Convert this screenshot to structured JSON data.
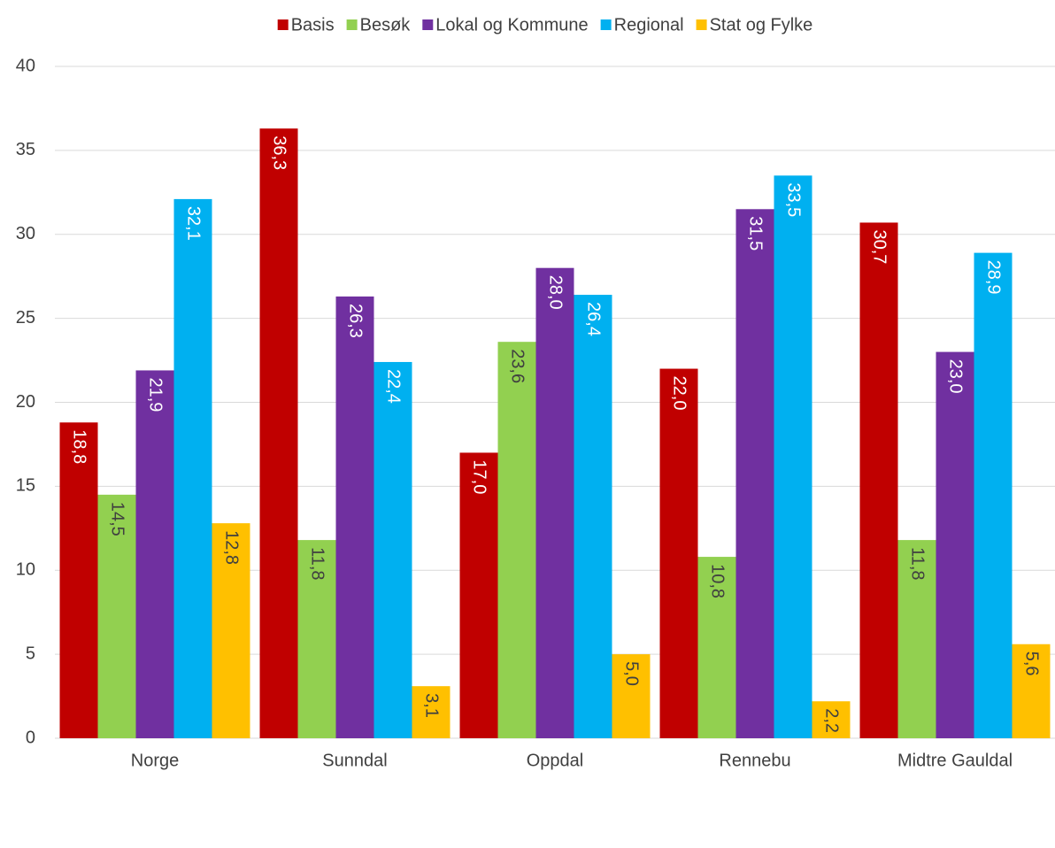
{
  "chart_data": {
    "type": "bar",
    "categories": [
      "Norge",
      "Sunndal",
      "Oppdal",
      "Rennebu",
      "Midtre Gauldal"
    ],
    "series": [
      {
        "name": "Basis",
        "color": "#c00000",
        "values": [
          18.8,
          36.3,
          17.0,
          22.0,
          30.7
        ],
        "value_labels": [
          "18,8",
          "36,3",
          "17,0",
          "22,0",
          "30,7"
        ]
      },
      {
        "name": "Besøk",
        "color": "#92d050",
        "values": [
          14.5,
          11.8,
          23.6,
          10.8,
          11.8
        ],
        "value_labels": [
          "14,5",
          "11,8",
          "23,6",
          "10,8",
          "11,8"
        ]
      },
      {
        "name": "Lokal og Kommune",
        "color": "#7030a0",
        "values": [
          21.9,
          26.3,
          28.0,
          31.5,
          23.0
        ],
        "value_labels": [
          "21,9",
          "26,3",
          "28,0",
          "31,5",
          "23,0"
        ]
      },
      {
        "name": "Regional",
        "color": "#00b0f0",
        "values": [
          32.1,
          22.4,
          26.4,
          33.5,
          28.9
        ],
        "value_labels": [
          "32,1",
          "22,4",
          "26,4",
          "33,5",
          "28,9"
        ]
      },
      {
        "name": "Stat og Fylke",
        "color": "#ffc000",
        "values": [
          12.8,
          3.1,
          5.0,
          2.2,
          5.6
        ],
        "value_labels": [
          "12,8",
          "3,1",
          "5,0",
          "2,2",
          "5,6"
        ]
      }
    ],
    "ylim": [
      0,
      40
    ],
    "yticks": [
      0,
      5,
      10,
      15,
      20,
      25,
      30,
      35,
      40
    ],
    "grid": true,
    "legend": "top"
  }
}
